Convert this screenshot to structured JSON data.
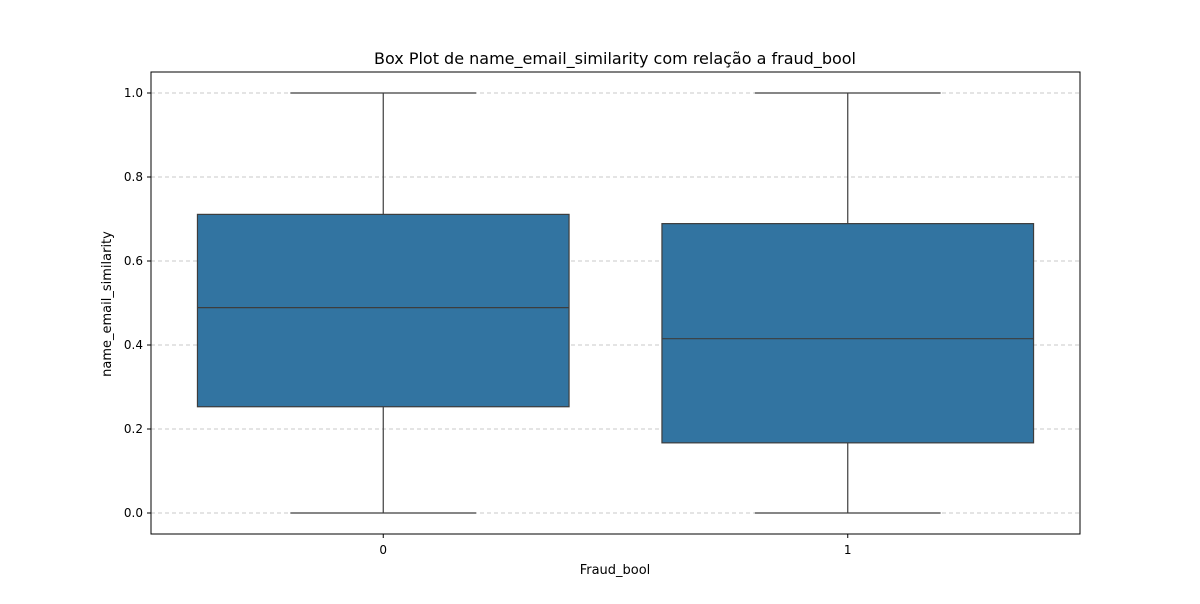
{
  "chart_data": {
    "type": "box",
    "title": "Box Plot de name_email_similarity com relação a fraud_bool",
    "xlabel": "Fraud_bool",
    "ylabel": "name_email_similarity",
    "categories": [
      "0",
      "1"
    ],
    "series": [
      {
        "category": "0",
        "whisker_low": 0.0,
        "q1": 0.253,
        "median": 0.489,
        "q3": 0.711,
        "whisker_high": 1.0
      },
      {
        "category": "1",
        "whisker_low": 0.0,
        "q1": 0.167,
        "median": 0.415,
        "q3": 0.689,
        "whisker_high": 1.0
      }
    ],
    "ylim": [
      -0.05,
      1.05
    ],
    "yticks": [
      0.0,
      0.2,
      0.4,
      0.6,
      0.8,
      1.0
    ],
    "ytick_labels": [
      "0.0",
      "0.2",
      "0.4",
      "0.6",
      "0.8",
      "1.0"
    ],
    "grid": "y-dashed",
    "box_color": "#3274a1",
    "edge_color": "#3d3d3d",
    "grid_color": "#c8c8c8"
  }
}
